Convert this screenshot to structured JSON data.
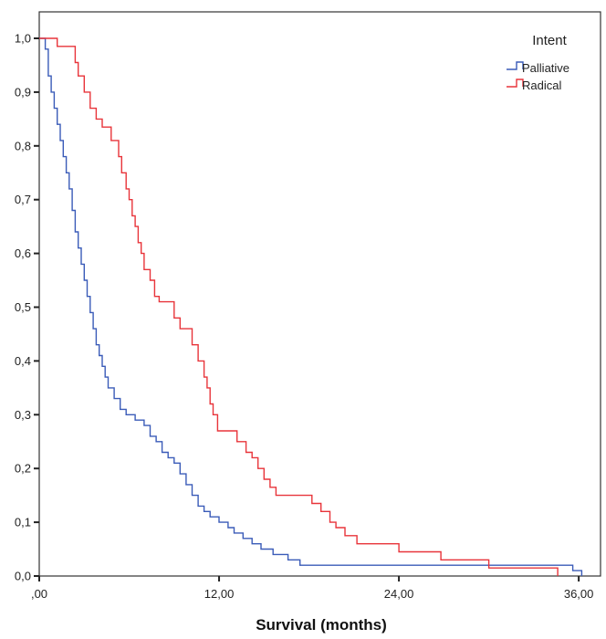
{
  "chart_data": {
    "type": "line",
    "step": true,
    "title": "",
    "xlabel": "Survival (months)",
    "ylabel": "",
    "xlim": [
      0,
      36.5
    ],
    "ylim": [
      0,
      1.0
    ],
    "x_ticks": [
      0,
      12,
      24,
      36
    ],
    "x_tick_labels": [
      ",00",
      "12,00",
      "24,00",
      "36,00"
    ],
    "y_ticks": [
      0,
      0.1,
      0.2,
      0.3,
      0.4,
      0.5,
      0.6,
      0.7,
      0.8,
      0.9,
      1.0
    ],
    "y_tick_labels": [
      "0,0",
      "0,1",
      "0,2",
      "0,3",
      "0,4",
      "0,5",
      "0,6",
      "0,7",
      "0,8",
      "0,9",
      "1,0"
    ],
    "grid": false,
    "legend": {
      "title": "Intent",
      "position": "top-right"
    },
    "series": [
      {
        "name": "Palliative",
        "color": "#3a5bb8",
        "x": [
          0,
          0.4,
          0.6,
          0.8,
          1.0,
          1.2,
          1.4,
          1.6,
          1.8,
          2.0,
          2.2,
          2.4,
          2.6,
          2.8,
          3.0,
          3.2,
          3.4,
          3.6,
          3.8,
          4.0,
          4.2,
          4.4,
          4.6,
          5.0,
          5.4,
          5.8,
          6.4,
          7.0,
          7.4,
          7.8,
          8.2,
          8.6,
          9.0,
          9.4,
          9.8,
          10.2,
          10.6,
          11.0,
          11.4,
          12.0,
          12.6,
          13.0,
          13.6,
          14.2,
          14.8,
          15.6,
          16.6,
          17.4,
          29.8,
          33.6,
          35.6,
          36.2
        ],
        "y": [
          1.0,
          0.98,
          0.93,
          0.9,
          0.87,
          0.84,
          0.81,
          0.78,
          0.75,
          0.72,
          0.68,
          0.64,
          0.61,
          0.58,
          0.55,
          0.52,
          0.49,
          0.46,
          0.43,
          0.41,
          0.39,
          0.37,
          0.35,
          0.33,
          0.31,
          0.3,
          0.29,
          0.28,
          0.26,
          0.25,
          0.23,
          0.22,
          0.21,
          0.19,
          0.17,
          0.15,
          0.13,
          0.12,
          0.11,
          0.1,
          0.09,
          0.08,
          0.07,
          0.06,
          0.05,
          0.04,
          0.03,
          0.02,
          0.02,
          0.02,
          0.01,
          0.0
        ]
      },
      {
        "name": "Radical",
        "color": "#e8343a",
        "x": [
          0,
          1.2,
          2.4,
          2.6,
          3.0,
          3.4,
          3.8,
          4.2,
          4.8,
          5.3,
          5.5,
          5.8,
          6.0,
          6.2,
          6.4,
          6.6,
          6.8,
          7.0,
          7.4,
          7.7,
          8.0,
          8.4,
          9.0,
          9.4,
          10.2,
          10.6,
          11.0,
          11.2,
          11.4,
          11.6,
          11.9,
          12.0,
          13.2,
          13.8,
          14.2,
          14.6,
          15.0,
          15.4,
          15.8,
          16.2,
          18.2,
          18.8,
          19.4,
          19.8,
          20.4,
          21.2,
          22.4,
          24.0,
          26.8,
          30.0,
          33.4,
          34.6
        ],
        "y": [
          1.0,
          0.985,
          0.955,
          0.93,
          0.9,
          0.87,
          0.85,
          0.835,
          0.81,
          0.78,
          0.75,
          0.72,
          0.7,
          0.67,
          0.65,
          0.62,
          0.6,
          0.57,
          0.55,
          0.52,
          0.51,
          0.51,
          0.48,
          0.46,
          0.43,
          0.4,
          0.37,
          0.35,
          0.32,
          0.3,
          0.27,
          0.27,
          0.25,
          0.23,
          0.22,
          0.2,
          0.18,
          0.165,
          0.15,
          0.15,
          0.135,
          0.12,
          0.1,
          0.09,
          0.075,
          0.06,
          0.06,
          0.045,
          0.03,
          0.015,
          0.015,
          0.0
        ]
      }
    ]
  }
}
